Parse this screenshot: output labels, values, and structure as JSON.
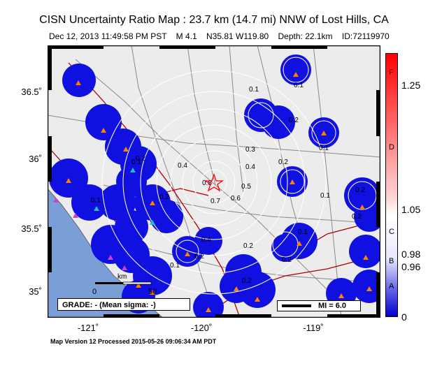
{
  "title": "CISN Uncertainty Ratio Map : 23.7 km (14.7 mi) NNW of Lost Hills, CA",
  "subtitle": "Dec 12, 2013 11:49:58 PM PST    M 4.1    N35.81 W119.80    Depth: 22.1km    ID:72119970",
  "footer": "Map Version 12 Processed 2015-05-26 09:06:34 AM PDT",
  "grade": "GRADE: - (Mean sigma: -)",
  "mi_legend": "MI = 6.0",
  "scale_bar": {
    "km": "km",
    "zero": "0",
    "far": "50"
  },
  "lat_ticks": [
    "36.5˚",
    "36˚",
    "35.5˚",
    "35˚"
  ],
  "lon_ticks": [
    "-121˚",
    "-120˚",
    "-119˚"
  ],
  "colorbar": {
    "values": [
      "1.25",
      "1.05",
      "0.98",
      "0.96",
      "0"
    ],
    "letters": [
      "F",
      "D",
      "C",
      "B",
      "A"
    ],
    "colors": {
      "high": "#ff0000",
      "mid": "#ffffff",
      "low": "#0000cc"
    }
  },
  "contours": [
    "0.1",
    "0.1",
    "0.1",
    "0.2",
    "0.2",
    "0.2",
    "0.3",
    "0.4",
    "0.5",
    "0.6",
    "0.7",
    "0.8",
    "0.4",
    "0.2",
    "0.1",
    "0.2",
    "0.1",
    "0.2",
    "0.4",
    "0.1",
    "0.2",
    "0.1",
    "0.2",
    "0.2",
    "0.1",
    "0.2"
  ],
  "epicenter": {
    "symbol": "star",
    "color": "#ff0000"
  },
  "colors": {
    "land": "#ececec",
    "ocean": "#7a9fd6",
    "low_ratio": "#1010e0",
    "faults": "#b00000",
    "roads": "#8a8a8a",
    "stations": "#ff8000",
    "stations_alt": "#d040d0",
    "stations_cyan": "#20c0c0"
  }
}
